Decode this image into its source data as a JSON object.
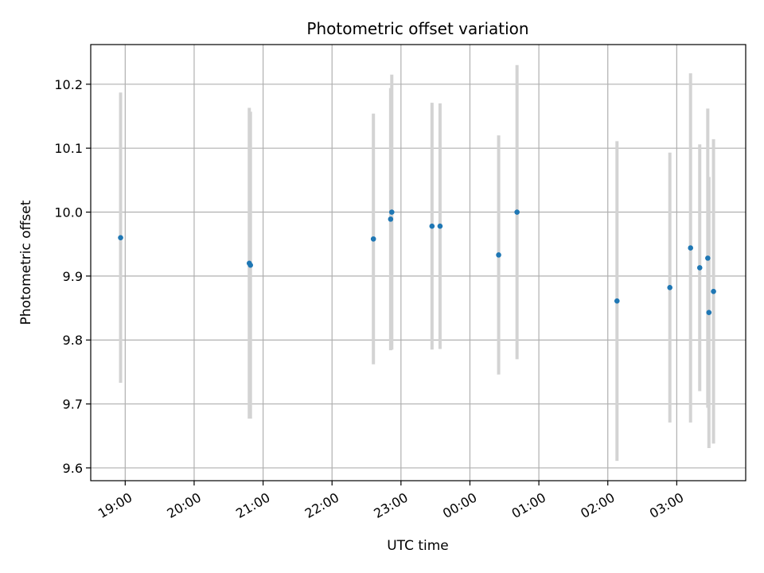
{
  "chart_data": {
    "type": "scatter",
    "title": "Photometric offset variation",
    "xlabel": "UTC time",
    "ylabel": "Photometric offset",
    "grid": true,
    "xlim": [
      "18:30",
      "04:00"
    ],
    "ylim": [
      9.58,
      10.262
    ],
    "x_ticks": [
      "19:00",
      "20:00",
      "21:00",
      "22:00",
      "23:00",
      "00:00",
      "01:00",
      "02:00",
      "03:00"
    ],
    "y_ticks": [
      "9.6",
      "9.7",
      "9.8",
      "9.9",
      "10.0",
      "10.1",
      "10.2"
    ],
    "colors": {
      "point": "#1f77b4",
      "errorbar": "#d3d3d3",
      "grid": "#b0b0b0"
    },
    "points": [
      {
        "x": "18:56",
        "y": 9.96,
        "yerr": 0.227
      },
      {
        "x": "20:48",
        "y": 9.92,
        "yerr": 0.243
      },
      {
        "x": "20:49",
        "y": 9.917,
        "yerr": 0.24
      },
      {
        "x": "22:36",
        "y": 9.958,
        "yerr": 0.196
      },
      {
        "x": "22:51",
        "y": 9.989,
        "yerr": 0.205
      },
      {
        "x": "22:52",
        "y": 10.0,
        "yerr": 0.215
      },
      {
        "x": "23:27",
        "y": 9.978,
        "yerr": 0.193
      },
      {
        "x": "23:34",
        "y": 9.978,
        "yerr": 0.192
      },
      {
        "x": "00:25",
        "y": 9.933,
        "yerr": 0.187
      },
      {
        "x": "00:41",
        "y": 10.0,
        "yerr": 0.23
      },
      {
        "x": "02:08",
        "y": 9.861,
        "yerr": 0.25
      },
      {
        "x": "02:54",
        "y": 9.882,
        "yerr": 0.211
      },
      {
        "x": "03:12",
        "y": 9.944,
        "yerr": 0.273
      },
      {
        "x": "03:20",
        "y": 9.913,
        "yerr": 0.193
      },
      {
        "x": "03:27",
        "y": 9.928,
        "yerr": 0.234
      },
      {
        "x": "03:28",
        "y": 9.843,
        "yerr": 0.212
      },
      {
        "x": "03:32",
        "y": 9.876,
        "yerr": 0.238
      }
    ]
  }
}
